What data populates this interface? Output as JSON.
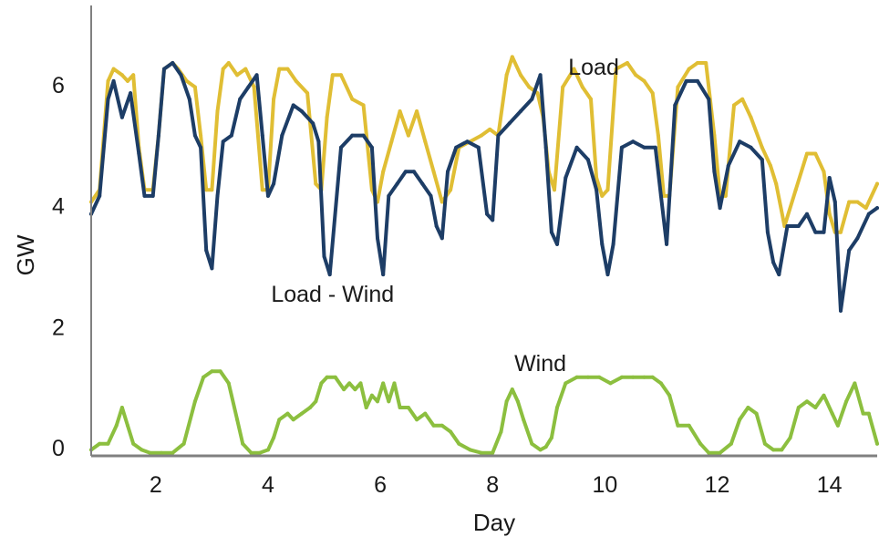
{
  "chart_data": {
    "type": "line",
    "title": "",
    "xlabel": "Day",
    "ylabel": "GW",
    "xlim": [
      0.85,
      14.85
    ],
    "ylim": [
      -0.1,
      7.35
    ],
    "xticks": [
      2,
      4,
      6,
      8,
      10,
      12,
      14
    ],
    "yticks": [
      0,
      2,
      4,
      6
    ],
    "grid": false,
    "colors": {
      "Load": "#E0BE34",
      "Load - Wind": "#1D3D66",
      "Wind": "#8CBF3F",
      "axis": "#808080"
    },
    "series": [
      {
        "name": "Load",
        "x": [
          0.85,
          1.0,
          1.15,
          1.25,
          1.4,
          1.5,
          1.6,
          1.7,
          1.8,
          1.95,
          2.05,
          2.15,
          2.3,
          2.4,
          2.55,
          2.7,
          2.8,
          2.9,
          3.0,
          3.1,
          3.2,
          3.3,
          3.45,
          3.6,
          3.75,
          3.9,
          4.0,
          4.1,
          4.2,
          4.35,
          4.5,
          4.7,
          4.85,
          4.95,
          5.05,
          5.15,
          5.3,
          5.5,
          5.7,
          5.85,
          5.95,
          6.05,
          6.2,
          6.35,
          6.5,
          6.65,
          6.8,
          6.95,
          7.1,
          7.25,
          7.4,
          7.6,
          7.8,
          7.95,
          8.1,
          8.25,
          8.35,
          8.5,
          8.65,
          8.8,
          8.9,
          9.0,
          9.1,
          9.25,
          9.45,
          9.6,
          9.75,
          9.85,
          9.95,
          10.05,
          10.2,
          10.4,
          10.55,
          10.7,
          10.85,
          10.95,
          11.05,
          11.15,
          11.3,
          11.5,
          11.65,
          11.8,
          11.95,
          12.05,
          12.15,
          12.3,
          12.45,
          12.6,
          12.8,
          12.95,
          13.05,
          13.2,
          13.4,
          13.6,
          13.75,
          13.9,
          14.0,
          14.1,
          14.2,
          14.35,
          14.5,
          14.65,
          14.85
        ],
        "y": [
          4.1,
          4.3,
          6.1,
          6.3,
          6.2,
          6.1,
          6.2,
          5.0,
          4.3,
          4.3,
          5.2,
          6.3,
          6.4,
          6.3,
          6.1,
          6.0,
          5.2,
          4.3,
          4.3,
          5.6,
          6.3,
          6.4,
          6.2,
          6.3,
          6.0,
          4.3,
          4.3,
          5.8,
          6.3,
          6.3,
          6.1,
          5.9,
          4.4,
          4.3,
          5.5,
          6.2,
          6.2,
          5.8,
          5.7,
          4.3,
          4.1,
          4.6,
          5.1,
          5.6,
          5.2,
          5.6,
          5.1,
          4.6,
          4.1,
          4.3,
          5.0,
          5.1,
          5.2,
          5.3,
          5.2,
          6.2,
          6.5,
          6.2,
          6.0,
          5.9,
          5.5,
          4.6,
          4.3,
          6.0,
          6.3,
          6.0,
          5.8,
          4.5,
          4.2,
          4.3,
          6.3,
          6.4,
          6.2,
          6.1,
          5.9,
          5.2,
          4.2,
          4.2,
          6.0,
          6.3,
          6.4,
          6.4,
          5.2,
          4.2,
          4.2,
          5.7,
          5.8,
          5.5,
          5.0,
          4.7,
          4.4,
          3.7,
          4.3,
          4.9,
          4.9,
          4.6,
          3.9,
          3.6,
          3.6,
          4.1,
          4.1,
          4.0,
          4.4
        ]
      },
      {
        "name": "Load - Wind",
        "x": [
          0.85,
          1.0,
          1.15,
          1.25,
          1.4,
          1.55,
          1.7,
          1.8,
          1.95,
          2.05,
          2.15,
          2.3,
          2.45,
          2.6,
          2.7,
          2.8,
          2.9,
          3.0,
          3.1,
          3.2,
          3.35,
          3.5,
          3.65,
          3.8,
          3.9,
          4.0,
          4.1,
          4.25,
          4.45,
          4.6,
          4.8,
          4.9,
          5.0,
          5.1,
          5.3,
          5.5,
          5.7,
          5.85,
          5.95,
          6.05,
          6.15,
          6.3,
          6.45,
          6.6,
          6.75,
          6.9,
          7.0,
          7.1,
          7.2,
          7.35,
          7.55,
          7.75,
          7.9,
          8.0,
          8.1,
          8.3,
          8.5,
          8.7,
          8.85,
          8.95,
          9.05,
          9.15,
          9.3,
          9.5,
          9.7,
          9.85,
          9.95,
          10.05,
          10.15,
          10.3,
          10.5,
          10.7,
          10.9,
          11.0,
          11.1,
          11.25,
          11.45,
          11.65,
          11.85,
          11.95,
          12.05,
          12.2,
          12.4,
          12.6,
          12.8,
          12.9,
          13.0,
          13.1,
          13.25,
          13.45,
          13.6,
          13.75,
          13.9,
          14.0,
          14.1,
          14.2,
          14.35,
          14.5,
          14.7,
          14.85
        ],
        "y": [
          3.9,
          4.2,
          5.8,
          6.1,
          5.5,
          5.9,
          4.9,
          4.2,
          4.2,
          5.2,
          6.3,
          6.4,
          6.2,
          5.8,
          5.2,
          5.0,
          3.3,
          3.0,
          4.2,
          5.1,
          5.2,
          5.8,
          6.0,
          6.2,
          5.2,
          4.2,
          4.4,
          5.2,
          5.7,
          5.6,
          5.4,
          5.1,
          3.2,
          2.9,
          5.0,
          5.2,
          5.2,
          5.0,
          3.5,
          2.9,
          4.2,
          4.4,
          4.6,
          4.6,
          4.4,
          4.2,
          3.7,
          3.5,
          4.6,
          5.0,
          5.1,
          5.0,
          3.9,
          3.8,
          5.2,
          5.4,
          5.6,
          5.8,
          6.2,
          5.0,
          3.6,
          3.4,
          4.5,
          5.0,
          4.8,
          4.3,
          3.4,
          2.9,
          3.4,
          5.0,
          5.1,
          5.0,
          5.0,
          4.2,
          3.4,
          5.7,
          6.1,
          6.1,
          5.8,
          4.6,
          4.0,
          4.7,
          5.1,
          5.0,
          4.8,
          3.6,
          3.1,
          2.9,
          3.7,
          3.7,
          3.9,
          3.6,
          3.6,
          4.5,
          4.1,
          2.3,
          3.3,
          3.5,
          3.9,
          4.0
        ]
      },
      {
        "name": "Wind",
        "x": [
          0.85,
          1.0,
          1.15,
          1.3,
          1.4,
          1.5,
          1.6,
          1.75,
          1.9,
          2.1,
          2.3,
          2.5,
          2.7,
          2.85,
          3.0,
          3.15,
          3.3,
          3.45,
          3.55,
          3.7,
          3.85,
          4.0,
          4.1,
          4.2,
          4.35,
          4.45,
          4.6,
          4.75,
          4.85,
          4.95,
          5.05,
          5.2,
          5.35,
          5.45,
          5.55,
          5.65,
          5.75,
          5.85,
          5.95,
          6.05,
          6.15,
          6.25,
          6.35,
          6.5,
          6.65,
          6.8,
          6.95,
          7.1,
          7.25,
          7.4,
          7.6,
          7.8,
          8.0,
          8.15,
          8.25,
          8.35,
          8.45,
          8.55,
          8.7,
          8.85,
          8.95,
          9.05,
          9.15,
          9.3,
          9.5,
          9.7,
          9.9,
          10.1,
          10.3,
          10.5,
          10.7,
          10.85,
          11.0,
          11.15,
          11.3,
          11.5,
          11.7,
          11.85,
          12.05,
          12.25,
          12.4,
          12.55,
          12.7,
          12.85,
          13.0,
          13.15,
          13.3,
          13.45,
          13.6,
          13.75,
          13.9,
          14.05,
          14.15,
          14.3,
          14.45,
          14.6,
          14.7,
          14.85
        ],
        "y": [
          0.0,
          0.1,
          0.1,
          0.4,
          0.7,
          0.4,
          0.1,
          0.0,
          -0.05,
          -0.05,
          -0.05,
          0.1,
          0.8,
          1.2,
          1.3,
          1.3,
          1.1,
          0.5,
          0.1,
          -0.05,
          -0.05,
          0.0,
          0.2,
          0.5,
          0.6,
          0.5,
          0.6,
          0.7,
          0.8,
          1.1,
          1.2,
          1.2,
          1.0,
          1.1,
          1.0,
          1.1,
          0.7,
          0.9,
          0.8,
          1.1,
          0.8,
          1.1,
          0.7,
          0.7,
          0.5,
          0.6,
          0.4,
          0.4,
          0.3,
          0.1,
          0.0,
          -0.05,
          -0.05,
          0.3,
          0.8,
          1.0,
          0.8,
          0.5,
          0.1,
          0.0,
          0.05,
          0.2,
          0.7,
          1.1,
          1.2,
          1.2,
          1.2,
          1.1,
          1.2,
          1.2,
          1.2,
          1.2,
          1.1,
          0.9,
          0.4,
          0.4,
          0.1,
          -0.05,
          -0.05,
          0.1,
          0.5,
          0.7,
          0.6,
          0.1,
          0.0,
          0.0,
          0.2,
          0.7,
          0.8,
          0.7,
          0.9,
          0.6,
          0.4,
          0.8,
          1.1,
          0.6,
          0.6,
          0.1
        ]
      }
    ],
    "annotations": [
      {
        "text": "Load",
        "x": 9.8,
        "y": 6.3
      },
      {
        "text": "Load - Wind",
        "x": 5.15,
        "y": 2.55
      },
      {
        "text": "Wind",
        "x": 8.85,
        "y": 1.4
      }
    ]
  }
}
